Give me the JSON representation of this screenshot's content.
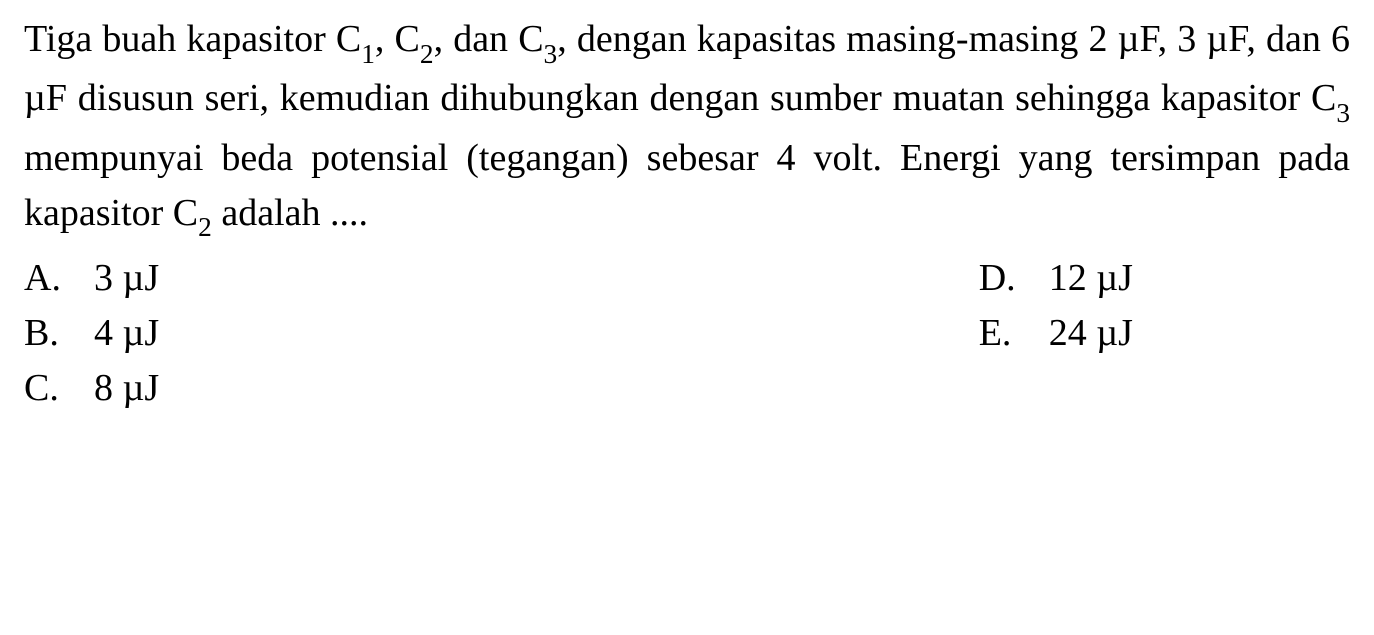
{
  "question": {
    "p1_a": "Tiga buah kapasitor C",
    "p1_b": ", C",
    "p1_c": ", dan C",
    "p1_d": ", dengan kapasitas masing-masing 2 µF, 3 µF, dan 6 µF disusun seri, ke­mudian dihubungkan dengan sumber muatan sehingga kapasitor C",
    "p1_e": " mempunyai beda potensial (tegangan) sebesar 4 volt. Energi yang tersimpan pada kapasitor C",
    "p1_f": " adalah ....",
    "sub1": "1",
    "sub2": "2",
    "sub3": "3",
    "sub3b": "3",
    "sub2b": "2"
  },
  "options": {
    "a": {
      "letter": "A.",
      "text": "3 µJ"
    },
    "b": {
      "letter": "B.",
      "text": "4 µJ"
    },
    "c": {
      "letter": "C.",
      "text": "8 µJ"
    },
    "d": {
      "letter": "D.",
      "text": "12 µJ"
    },
    "e": {
      "letter": "E.",
      "text": "24 µJ"
    }
  }
}
